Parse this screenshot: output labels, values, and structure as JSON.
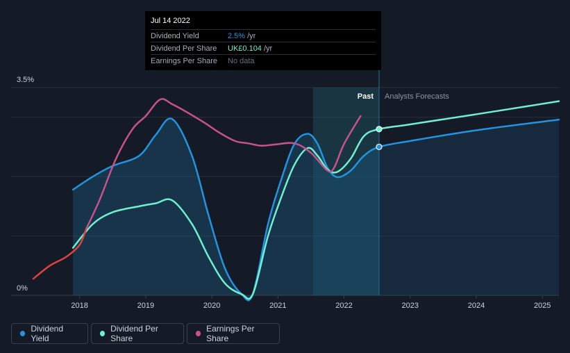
{
  "tooltip": {
    "date": "Jul 14 2022",
    "rows": [
      {
        "label": "Dividend Yield",
        "value": "2.5%",
        "unit": "/yr"
      },
      {
        "label": "Dividend Per Share",
        "value": "UK£0.104",
        "unit": "/yr"
      },
      {
        "label": "Earnings Per Share",
        "value": "No data"
      }
    ]
  },
  "legend": {
    "items": [
      {
        "label": "Dividend Yield",
        "color": "#2394df"
      },
      {
        "label": "Dividend Per Share",
        "color": "#6ff0d0"
      },
      {
        "label": "Earnings Per Share",
        "color": "#c8528c"
      }
    ]
  },
  "chart_data": {
    "type": "line",
    "ylabel_top": "3.5%",
    "ylabel_bottom": "0%",
    "ylim": [
      0,
      3.5
    ],
    "xlim": [
      2017.3,
      2025.25
    ],
    "past_label": "Past",
    "forecast_label": "Analysts Forecasts",
    "past_boundary": 2022.53,
    "highlight_start": 2021.53,
    "x_ticks": [
      "2018",
      "2019",
      "2020",
      "2021",
      "2022",
      "2023",
      "2024",
      "2025"
    ],
    "series": [
      {
        "name": "Dividend Yield",
        "color": "#2394df",
        "points": [
          [
            2017.9,
            1.78
          ],
          [
            2018.2,
            2.0
          ],
          [
            2018.5,
            2.18
          ],
          [
            2018.9,
            2.35
          ],
          [
            2019.15,
            2.7
          ],
          [
            2019.4,
            2.97
          ],
          [
            2019.7,
            2.35
          ],
          [
            2019.95,
            1.35
          ],
          [
            2020.2,
            0.45
          ],
          [
            2020.45,
            0.02
          ],
          [
            2020.62,
            0.02
          ],
          [
            2020.85,
            1.2
          ],
          [
            2021.05,
            1.95
          ],
          [
            2021.25,
            2.55
          ],
          [
            2021.45,
            2.72
          ],
          [
            2021.6,
            2.55
          ],
          [
            2021.75,
            2.15
          ],
          [
            2021.9,
            1.99
          ],
          [
            2022.1,
            2.1
          ],
          [
            2022.3,
            2.35
          ],
          [
            2022.53,
            2.5
          ],
          [
            2023.0,
            2.6
          ],
          [
            2024.0,
            2.78
          ],
          [
            2025.25,
            2.96
          ]
        ]
      },
      {
        "name": "Dividend Per Share",
        "color": "#6ff0d0",
        "points": [
          [
            2017.9,
            0.8
          ],
          [
            2018.2,
            1.2
          ],
          [
            2018.5,
            1.4
          ],
          [
            2018.9,
            1.5
          ],
          [
            2019.15,
            1.55
          ],
          [
            2019.4,
            1.6
          ],
          [
            2019.7,
            1.2
          ],
          [
            2019.95,
            0.65
          ],
          [
            2020.2,
            0.2
          ],
          [
            2020.45,
            0.02
          ],
          [
            2020.62,
            0.02
          ],
          [
            2020.85,
            1.0
          ],
          [
            2021.05,
            1.65
          ],
          [
            2021.25,
            2.2
          ],
          [
            2021.45,
            2.48
          ],
          [
            2021.6,
            2.35
          ],
          [
            2021.75,
            2.12
          ],
          [
            2021.9,
            2.08
          ],
          [
            2022.1,
            2.3
          ],
          [
            2022.3,
            2.68
          ],
          [
            2022.53,
            2.8
          ],
          [
            2023.0,
            2.88
          ],
          [
            2024.0,
            3.05
          ],
          [
            2025.25,
            3.27
          ]
        ]
      },
      {
        "name": "Earnings Per Share",
        "color": "#c8528c",
        "points": [
          [
            2018.1,
            1.12
          ],
          [
            2018.3,
            1.6
          ],
          [
            2018.55,
            2.3
          ],
          [
            2018.8,
            2.8
          ],
          [
            2019.0,
            3.02
          ],
          [
            2019.22,
            3.3
          ],
          [
            2019.4,
            3.22
          ],
          [
            2019.6,
            3.1
          ],
          [
            2019.9,
            2.9
          ],
          [
            2020.1,
            2.75
          ],
          [
            2020.35,
            2.6
          ],
          [
            2020.55,
            2.56
          ],
          [
            2020.75,
            2.52
          ],
          [
            2020.95,
            2.54
          ],
          [
            2021.25,
            2.56
          ],
          [
            2021.5,
            2.4
          ],
          [
            2021.75,
            2.1
          ],
          [
            2021.85,
            2.15
          ],
          [
            2022.0,
            2.55
          ],
          [
            2022.25,
            3.02
          ]
        ]
      },
      {
        "name": "Earnings Per Share (earlier)",
        "color": "#e0423f",
        "points": [
          [
            2017.3,
            0.28
          ],
          [
            2017.55,
            0.5
          ],
          [
            2017.8,
            0.65
          ],
          [
            2018.0,
            0.85
          ],
          [
            2018.1,
            1.12
          ]
        ]
      }
    ],
    "markers": [
      {
        "series": "Dividend Yield",
        "x": 2022.53,
        "y": 2.5
      },
      {
        "series": "Dividend Per Share",
        "x": 2022.53,
        "y": 2.8
      }
    ]
  }
}
